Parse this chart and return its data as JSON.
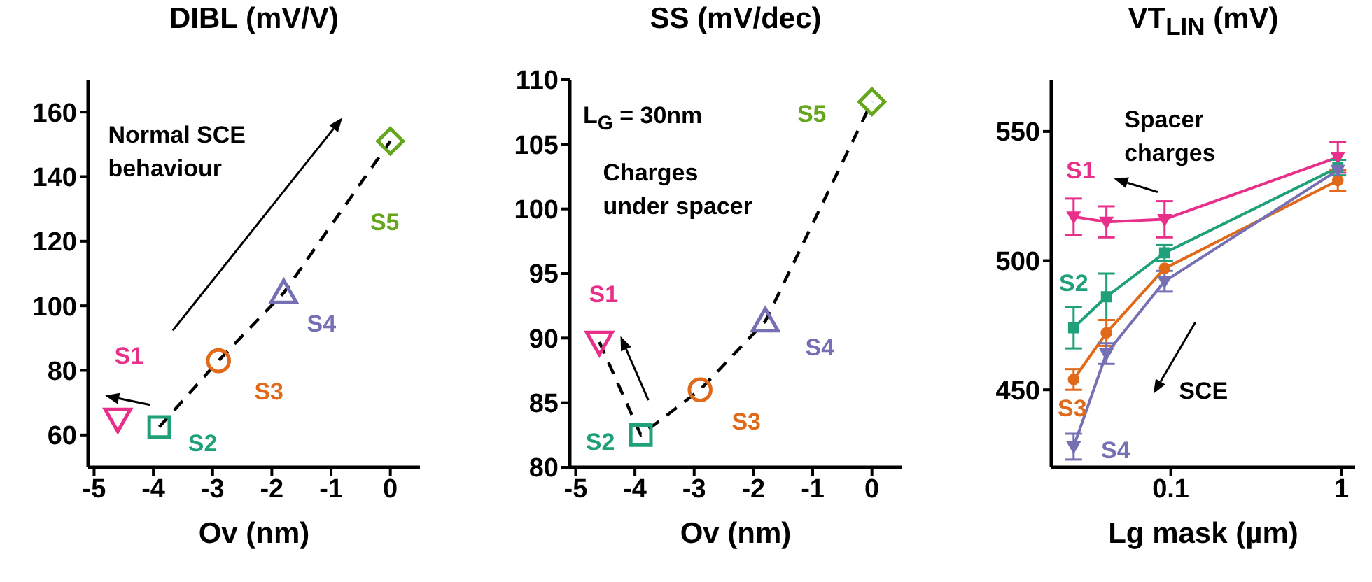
{
  "chart_data": [
    {
      "type": "scatter",
      "title": "DIBL (mV/V)",
      "xlabel": "Ov (nm)",
      "xlim": [
        -5.1,
        0.5
      ],
      "xticks": [
        -5,
        -4,
        -3,
        -2,
        -1,
        0
      ],
      "ylim": [
        50,
        170
      ],
      "yticks": [
        60,
        80,
        100,
        120,
        140,
        160
      ],
      "annotations": [
        "Normal SCE behaviour"
      ],
      "series": [
        {
          "type": "line",
          "color": "#000000",
          "line_style": "dashed",
          "marker": "none",
          "x": [
            -3.9,
            -2.9,
            -1.8,
            0
          ],
          "values": [
            62.5,
            83,
            104,
            151
          ]
        },
        {
          "name": "S1",
          "color": "#e8308a",
          "marker": "triangle-down",
          "x": [
            -4.6
          ],
          "values": [
            65
          ]
        },
        {
          "name": "S2",
          "color": "#1fa07a",
          "marker": "square",
          "x": [
            -3.9
          ],
          "values": [
            62.5
          ]
        },
        {
          "name": "S3",
          "color": "#e0691a",
          "marker": "circle",
          "x": [
            -2.9
          ],
          "values": [
            83
          ]
        },
        {
          "name": "S4",
          "color": "#7570b3",
          "marker": "triangle",
          "x": [
            -1.8
          ],
          "values": [
            104
          ]
        },
        {
          "name": "S5",
          "color": "#66a61e",
          "marker": "diamond",
          "x": [
            0
          ],
          "values": [
            151
          ]
        }
      ]
    },
    {
      "type": "scatter",
      "title": "SS (mV/dec)",
      "xlabel": "Ov (nm)",
      "xlim": [
        -5.1,
        0.5
      ],
      "xticks": [
        -5,
        -4,
        -3,
        -2,
        -1,
        0
      ],
      "ylim": [
        80,
        110
      ],
      "yticks": [
        80,
        85,
        90,
        95,
        100,
        105,
        110
      ],
      "annotations": [
        "L$_{G}$ = 30nm",
        "Charges under spacer"
      ],
      "series": [
        {
          "type": "line",
          "color": "#000000",
          "line_style": "dashed",
          "marker": "none",
          "x": [
            -4.6,
            -3.9,
            -2.9,
            -1.8,
            0
          ],
          "values": [
            89.7,
            82.5,
            86,
            91.3,
            108.3
          ]
        },
        {
          "name": "S1",
          "color": "#e8308a",
          "marker": "triangle-down",
          "x": [
            -4.6
          ],
          "values": [
            89.7
          ]
        },
        {
          "name": "S2",
          "color": "#1fa07a",
          "marker": "square",
          "x": [
            -3.9
          ],
          "values": [
            82.5
          ]
        },
        {
          "name": "S3",
          "color": "#e0691a",
          "marker": "circle",
          "x": [
            -2.9
          ],
          "values": [
            86
          ]
        },
        {
          "name": "S4",
          "color": "#7570b3",
          "marker": "triangle",
          "x": [
            -1.8
          ],
          "values": [
            91.3
          ]
        },
        {
          "name": "S5",
          "color": "#66a61e",
          "marker": "diamond",
          "x": [
            0
          ],
          "values": [
            108.3
          ]
        }
      ]
    },
    {
      "type": "line",
      "title": "VT$_{LIN}$ (mV)",
      "xlabel": "Lg mask (µm)",
      "log": "x",
      "xlim": [
        0.02,
        1.2
      ],
      "xticks": [
        0.1,
        1
      ],
      "ylim": [
        420,
        570
      ],
      "yticks": [
        450,
        500,
        550
      ],
      "annotations": [
        "Spacer charges",
        "SCE"
      ],
      "x": [
        0.027,
        0.042,
        0.092,
        0.95
      ],
      "series": [
        {
          "name": "S1",
          "color": "#e8308a",
          "marker": "triangle-down",
          "values": [
            517,
            515,
            516,
            540
          ],
          "errors": [
            7,
            6,
            7,
            6
          ]
        },
        {
          "name": "S2",
          "color": "#1fa07a",
          "marker": "square",
          "values": [
            474,
            486,
            503,
            536
          ],
          "errors": [
            8,
            9,
            3,
            3
          ]
        },
        {
          "name": "S3",
          "color": "#e0691a",
          "marker": "circle",
          "values": [
            454,
            472,
            497,
            531
          ],
          "errors": [
            4,
            5,
            null,
            4
          ]
        },
        {
          "name": "S4",
          "color": "#7570b3",
          "marker": "triangle-down",
          "values": [
            428,
            464,
            492,
            535
          ],
          "errors": [
            5,
            4,
            4,
            null
          ]
        }
      ]
    }
  ]
}
